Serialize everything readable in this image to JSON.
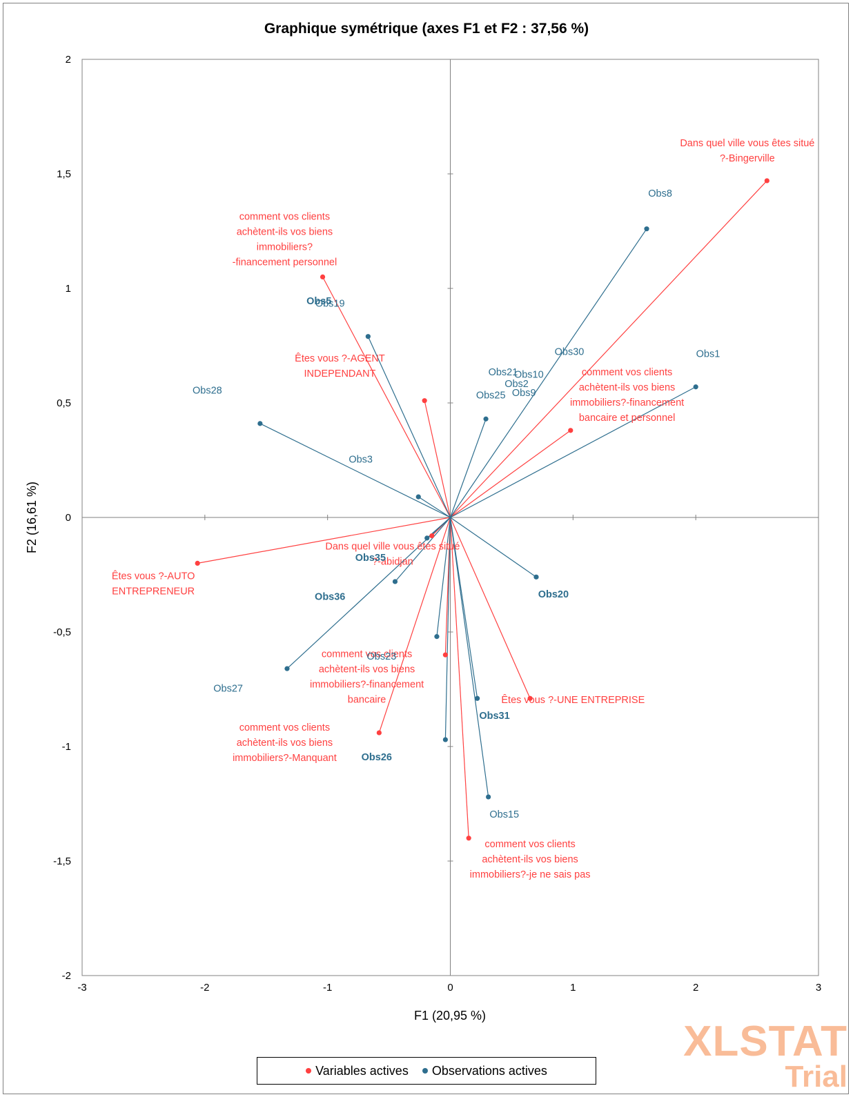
{
  "chart_data": {
    "type": "scatter",
    "title": "Graphique symétrique (axes F1 et F2 : 37,56 %)",
    "xlabel": "F1 (20,95 %)",
    "ylabel": "F2 (16,61 %)",
    "xlim": [
      -3,
      3
    ],
    "ylim": [
      -2,
      2
    ],
    "x_ticks": [
      "-3",
      "-2",
      "-1",
      "0",
      "1",
      "2",
      "3"
    ],
    "y_ticks": [
      "2",
      "1,5",
      "1",
      "0,5",
      "0",
      "-0,5",
      "-1",
      "-1,5",
      "-2"
    ],
    "legend_position": "bottom",
    "series": [
      {
        "name": "Variables actives",
        "color": "#ff4040",
        "points": [
          {
            "x": 2.58,
            "y": 1.47
          },
          {
            "x": -1.04,
            "y": 1.05
          },
          {
            "x": -0.21,
            "y": 0.51
          },
          {
            "x": 0.98,
            "y": 0.38
          },
          {
            "x": -0.15,
            "y": -0.08
          },
          {
            "x": -2.06,
            "y": -0.2
          },
          {
            "x": -0.04,
            "y": -0.6
          },
          {
            "x": 0.65,
            "y": -0.79
          },
          {
            "x": -0.58,
            "y": -0.94
          },
          {
            "x": 0.15,
            "y": -1.4
          }
        ]
      },
      {
        "name": "Observations actives",
        "color": "#2e6e8e",
        "points": [
          {
            "x": 1.6,
            "y": 1.26
          },
          {
            "x": 2.0,
            "y": 0.57
          },
          {
            "x": -0.67,
            "y": 0.79
          },
          {
            "x": 0.29,
            "y": 0.43
          },
          {
            "x": -1.55,
            "y": 0.41
          },
          {
            "x": -0.26,
            "y": 0.09
          },
          {
            "x": -0.19,
            "y": -0.09
          },
          {
            "x": 0.7,
            "y": -0.26
          },
          {
            "x": -0.45,
            "y": -0.28
          },
          {
            "x": -0.11,
            "y": -0.52
          },
          {
            "x": -1.33,
            "y": -0.66
          },
          {
            "x": 0.22,
            "y": -0.79
          },
          {
            "x": -0.04,
            "y": -0.97
          },
          {
            "x": 0.31,
            "y": -1.22
          }
        ]
      }
    ],
    "annotations": [
      {
        "text": [
          "Dans quel ville vous êtes situé",
          "?-Bingerville"
        ],
        "x": 2.42,
        "y": 1.62,
        "cls": "lbl-var"
      },
      {
        "text": [
          "comment vos clients",
          "achètent-ils vos biens",
          "immobiliers?",
          "-financement personnel"
        ],
        "x": -1.35,
        "y": 1.3,
        "cls": "lbl-var"
      },
      {
        "text": [
          "Êtes vous ?-AGENT",
          "INDEPENDANT"
        ],
        "x": -0.9,
        "y": 0.68,
        "cls": "lbl-var"
      },
      {
        "text": [
          "comment vos clients",
          "achètent-ils vos biens",
          "immobiliers?-financement",
          "bancaire et personnel"
        ],
        "x": 1.44,
        "y": 0.62,
        "cls": "lbl-var"
      },
      {
        "text": [
          "Dans quel ville vous êtes situé",
          "?-abidjan"
        ],
        "x": -0.47,
        "y": -0.14,
        "cls": "lbl-var"
      },
      {
        "text": [
          "Êtes vous ?-AUTO",
          "ENTREPRENEUR"
        ],
        "x": -2.42,
        "y": -0.27,
        "cls": "lbl-var"
      },
      {
        "text": [
          "comment vos clients",
          "achètent-ils vos biens",
          "immobiliers?-financement",
          "bancaire"
        ],
        "x": -0.68,
        "y": -0.61,
        "cls": "lbl-var"
      },
      {
        "text": [
          "Êtes vous ?-UNE ENTREPRISE"
        ],
        "x": 1.0,
        "y": -0.81,
        "cls": "lbl-var"
      },
      {
        "text": [
          "comment vos clients",
          "achètent-ils vos biens",
          "immobiliers?-Manquant"
        ],
        "x": -1.35,
        "y": -0.93,
        "cls": "lbl-var"
      },
      {
        "text": [
          "comment vos clients",
          "achètent-ils vos biens",
          "immobiliers?-je ne sais pas"
        ],
        "x": 0.65,
        "y": -1.44,
        "cls": "lbl-var"
      },
      {
        "text": [
          "Obs8"
        ],
        "x": 1.71,
        "y": 1.4,
        "cls": "lbl-obs"
      },
      {
        "text": [
          "Obs1"
        ],
        "x": 2.1,
        "y": 0.7,
        "cls": "lbl-obs"
      },
      {
        "text": [
          "Obs30"
        ],
        "x": 0.97,
        "y": 0.71,
        "cls": "lbl-obs"
      },
      {
        "text": [
          "Obs21"
        ],
        "x": 0.43,
        "y": 0.62,
        "cls": "lbl-obs"
      },
      {
        "text": [
          "Obs10"
        ],
        "x": 0.64,
        "y": 0.61,
        "cls": "lbl-obs"
      },
      {
        "text": [
          "Obs2"
        ],
        "x": 0.54,
        "y": 0.57,
        "cls": "lbl-obs"
      },
      {
        "text": [
          "Obs9"
        ],
        "x": 0.6,
        "y": 0.53,
        "cls": "lbl-obs"
      },
      {
        "text": [
          "Obs25"
        ],
        "x": 0.33,
        "y": 0.52,
        "cls": "lbl-obs"
      },
      {
        "text": [
          "Obs28"
        ],
        "x": -1.98,
        "y": 0.54,
        "cls": "lbl-obs"
      },
      {
        "text": [
          "Obs3"
        ],
        "x": -0.73,
        "y": 0.24,
        "cls": "lbl-obs"
      },
      {
        "text": [
          "Obs19"
        ],
        "x": -0.98,
        "y": 0.92,
        "cls": "lbl-obs"
      },
      {
        "text": [
          "Obs23"
        ],
        "x": -0.56,
        "y": -0.62,
        "cls": "lbl-obs"
      },
      {
        "text": [
          "Obs27"
        ],
        "x": -1.81,
        "y": -0.76,
        "cls": "lbl-obs"
      },
      {
        "text": [
          "Obs15"
        ],
        "x": 0.44,
        "y": -1.31,
        "cls": "lbl-obs"
      },
      {
        "text": [
          "Obs35"
        ],
        "x": -0.65,
        "y": -0.19,
        "cls": "lbl-obs-bold"
      },
      {
        "text": [
          "Obs36"
        ],
        "x": -0.98,
        "y": -0.36,
        "cls": "lbl-obs-bold"
      },
      {
        "text": [
          "Obs20"
        ],
        "x": 0.84,
        "y": -0.35,
        "cls": "lbl-obs-bold"
      },
      {
        "text": [
          "Obs31"
        ],
        "x": 0.36,
        "y": -0.88,
        "cls": "lbl-obs-bold"
      },
      {
        "text": [
          "Obs26"
        ],
        "x": -0.6,
        "y": -1.06,
        "cls": "lbl-obs-bold"
      },
      {
        "text": [
          "Obs5"
        ],
        "x": -1.07,
        "y": 0.93,
        "cls": "lbl-obs-bold"
      }
    ]
  },
  "legend": {
    "items": [
      {
        "label": "Variables actives",
        "color": "#ff4040"
      },
      {
        "label": "Observations actives",
        "color": "#2e6e8e"
      }
    ]
  },
  "watermark": {
    "main": "XLSTAT",
    "sub": "Trial"
  }
}
